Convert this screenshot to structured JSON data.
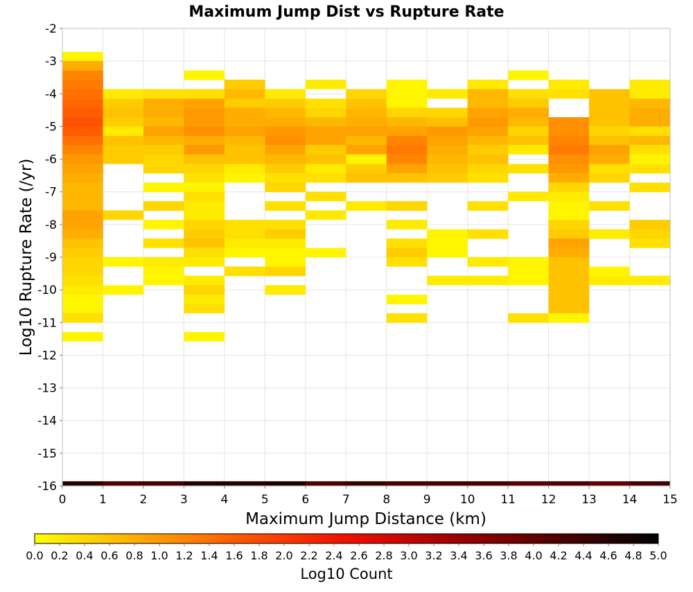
{
  "chart_data": {
    "type": "heatmap",
    "title": "Maximum Jump Dist vs Rupture Rate",
    "xlabel": "Maximum Jump Distance (km)",
    "ylabel": "Log10 Rupture Rate (/yr)",
    "xlim": [
      0,
      15
    ],
    "ylim": [
      -16,
      -2
    ],
    "x_ticks": [
      "0",
      "1",
      "2",
      "3",
      "4",
      "5",
      "6",
      "7",
      "8",
      "9",
      "10",
      "11",
      "12",
      "13",
      "14",
      "15"
    ],
    "y_ticks": [
      "-2",
      "-3",
      "-4",
      "-5",
      "-6",
      "-7",
      "-8",
      "-9",
      "-10",
      "-11",
      "-12",
      "-13",
      "-14",
      "-15",
      "-16"
    ],
    "x_bin_width": 1,
    "y_bin_height": 0.286,
    "grid": true,
    "colorbar": {
      "label": "Log10 Count",
      "range": [
        0.0,
        5.0
      ],
      "ticks": [
        "0.0",
        "0.2",
        "0.4",
        "0.6",
        "0.8",
        "1.0",
        "1.2",
        "1.4",
        "1.6",
        "1.8",
        "2.0",
        "2.2",
        "2.4",
        "2.6",
        "2.8",
        "3.0",
        "3.2",
        "3.4",
        "3.6",
        "3.8",
        "4.0",
        "4.2",
        "4.4",
        "4.6",
        "4.8",
        "5.0"
      ],
      "colormap": [
        "#ffff00",
        "#ffaa00",
        "#ff5500",
        "#ee1100",
        "#a00000",
        "#500000",
        "#000000"
      ]
    },
    "cells": [
      [
        0,
        -2.86,
        0.1
      ],
      [
        0,
        -3.14,
        0.8
      ],
      [
        0,
        -3.43,
        1.2
      ],
      [
        0,
        -3.71,
        1.3
      ],
      [
        0,
        -4.0,
        1.4
      ],
      [
        0,
        -4.29,
        1.5
      ],
      [
        0,
        -4.57,
        1.6
      ],
      [
        0,
        -4.86,
        1.7
      ],
      [
        0,
        -5.14,
        1.6
      ],
      [
        0,
        -5.43,
        1.4
      ],
      [
        0,
        -5.71,
        1.2
      ],
      [
        0,
        -6.0,
        1.0
      ],
      [
        0,
        -6.29,
        0.9
      ],
      [
        0,
        -6.57,
        0.8
      ],
      [
        0,
        -6.86,
        0.7
      ],
      [
        0,
        -7.14,
        0.7
      ],
      [
        0,
        -7.43,
        0.7
      ],
      [
        0,
        -7.71,
        0.9
      ],
      [
        0,
        -8.0,
        0.9
      ],
      [
        0,
        -8.29,
        0.8
      ],
      [
        0,
        -8.57,
        0.6
      ],
      [
        0,
        -8.86,
        0.5
      ],
      [
        0,
        -9.14,
        0.4
      ],
      [
        0,
        -9.43,
        0.4
      ],
      [
        0,
        -9.71,
        0.3
      ],
      [
        0,
        -10.0,
        0.2
      ],
      [
        0,
        -10.29,
        0.1
      ],
      [
        0,
        -10.57,
        0.1
      ],
      [
        0,
        -10.86,
        0.3
      ],
      [
        0,
        -11.43,
        0.1
      ],
      [
        1,
        -4.0,
        0.2
      ],
      [
        1,
        -4.29,
        0.5
      ],
      [
        1,
        -4.57,
        0.6
      ],
      [
        1,
        -4.86,
        0.5
      ],
      [
        1,
        -5.14,
        0.2
      ],
      [
        1,
        -5.43,
        0.6
      ],
      [
        1,
        -5.71,
        0.5
      ],
      [
        1,
        -6.0,
        0.5
      ],
      [
        1,
        -7.71,
        0.4
      ],
      [
        1,
        -9.14,
        0.1
      ],
      [
        1,
        -10.0,
        0.1
      ],
      [
        2,
        -4.0,
        0.3
      ],
      [
        2,
        -4.29,
        0.8
      ],
      [
        2,
        -4.57,
        0.8
      ],
      [
        2,
        -4.86,
        0.7
      ],
      [
        2,
        -5.14,
        0.9
      ],
      [
        2,
        -5.43,
        0.7
      ],
      [
        2,
        -5.71,
        0.5
      ],
      [
        2,
        -6.0,
        0.4
      ],
      [
        2,
        -6.29,
        0.4
      ],
      [
        2,
        -6.86,
        0.1
      ],
      [
        2,
        -7.43,
        0.4
      ],
      [
        2,
        -8.0,
        0.1
      ],
      [
        2,
        -8.57,
        0.3
      ],
      [
        2,
        -9.14,
        0.2
      ],
      [
        2,
        -9.43,
        0.1
      ],
      [
        2,
        -9.71,
        0.1
      ],
      [
        3,
        -3.43,
        0.1
      ],
      [
        3,
        -4.0,
        0.3
      ],
      [
        3,
        -4.29,
        0.9
      ],
      [
        3,
        -4.57,
        1.0
      ],
      [
        3,
        -4.86,
        1.0
      ],
      [
        3,
        -5.14,
        1.1
      ],
      [
        3,
        -5.43,
        0.8
      ],
      [
        3,
        -5.71,
        1.0
      ],
      [
        3,
        -6.0,
        0.6
      ],
      [
        3,
        -6.29,
        0.4
      ],
      [
        3,
        -6.57,
        0.3
      ],
      [
        3,
        -6.86,
        0.1
      ],
      [
        3,
        -7.14,
        0.3
      ],
      [
        3,
        -7.43,
        0.2
      ],
      [
        3,
        -7.71,
        0.2
      ],
      [
        3,
        -8.0,
        0.4
      ],
      [
        3,
        -8.29,
        0.5
      ],
      [
        3,
        -8.57,
        0.6
      ],
      [
        3,
        -8.86,
        0.3
      ],
      [
        3,
        -9.14,
        0.2
      ],
      [
        3,
        -9.71,
        0.2
      ],
      [
        3,
        -10.0,
        0.4
      ],
      [
        3,
        -10.29,
        0.2
      ],
      [
        3,
        -10.57,
        0.3
      ],
      [
        3,
        -11.43,
        0.1
      ],
      [
        4,
        -3.71,
        0.5
      ],
      [
        4,
        -4.0,
        0.7
      ],
      [
        4,
        -4.29,
        0.5
      ],
      [
        4,
        -4.57,
        0.8
      ],
      [
        4,
        -4.86,
        0.8
      ],
      [
        4,
        -5.14,
        0.9
      ],
      [
        4,
        -5.43,
        0.7
      ],
      [
        4,
        -5.71,
        0.6
      ],
      [
        4,
        -6.0,
        0.6
      ],
      [
        4,
        -6.29,
        0.2
      ],
      [
        4,
        -6.57,
        0.1
      ],
      [
        4,
        -8.0,
        0.3
      ],
      [
        4,
        -8.29,
        0.3
      ],
      [
        4,
        -8.57,
        0.2
      ],
      [
        4,
        -8.86,
        0.1
      ],
      [
        4,
        -9.43,
        0.3
      ],
      [
        5,
        -4.0,
        0.2
      ],
      [
        5,
        -4.29,
        0.5
      ],
      [
        5,
        -4.57,
        0.7
      ],
      [
        5,
        -4.86,
        0.8
      ],
      [
        5,
        -5.14,
        1.0
      ],
      [
        5,
        -5.43,
        1.1
      ],
      [
        5,
        -5.71,
        0.9
      ],
      [
        5,
        -6.0,
        0.7
      ],
      [
        5,
        -6.29,
        0.5
      ],
      [
        5,
        -6.57,
        0.3
      ],
      [
        5,
        -6.86,
        0.4
      ],
      [
        5,
        -7.43,
        0.3
      ],
      [
        5,
        -8.0,
        0.3
      ],
      [
        5,
        -8.29,
        0.5
      ],
      [
        5,
        -8.57,
        0.2
      ],
      [
        5,
        -8.86,
        0.1
      ],
      [
        5,
        -9.14,
        0.1
      ],
      [
        5,
        -9.43,
        0.4
      ],
      [
        5,
        -10.0,
        0.2
      ],
      [
        6,
        -3.71,
        0.2
      ],
      [
        6,
        -4.29,
        0.3
      ],
      [
        6,
        -4.57,
        0.4
      ],
      [
        6,
        -4.86,
        0.7
      ],
      [
        6,
        -5.14,
        0.9
      ],
      [
        6,
        -5.43,
        0.9
      ],
      [
        6,
        -5.71,
        0.5
      ],
      [
        6,
        -6.0,
        0.6
      ],
      [
        6,
        -6.29,
        0.2
      ],
      [
        6,
        -6.57,
        0.3
      ],
      [
        6,
        -7.14,
        0.3
      ],
      [
        6,
        -7.71,
        0.2
      ],
      [
        6,
        -8.86,
        0.1
      ],
      [
        7,
        -4.0,
        0.4
      ],
      [
        7,
        -4.29,
        0.6
      ],
      [
        7,
        -4.57,
        0.7
      ],
      [
        7,
        -4.86,
        0.8
      ],
      [
        7,
        -5.14,
        0.9
      ],
      [
        7,
        -5.43,
        0.7
      ],
      [
        7,
        -5.71,
        0.9
      ],
      [
        7,
        -6.0,
        0.1
      ],
      [
        7,
        -6.29,
        0.5
      ],
      [
        7,
        -6.57,
        0.6
      ],
      [
        7,
        -7.43,
        0.2
      ],
      [
        8,
        -3.71,
        0.1
      ],
      [
        8,
        -4.0,
        0.1
      ],
      [
        8,
        -4.29,
        0.1
      ],
      [
        8,
        -4.57,
        0.4
      ],
      [
        8,
        -4.86,
        0.7
      ],
      [
        8,
        -5.14,
        0.9
      ],
      [
        8,
        -5.43,
        1.2
      ],
      [
        8,
        -5.71,
        1.3
      ],
      [
        8,
        -6.0,
        1.2
      ],
      [
        8,
        -6.29,
        0.9
      ],
      [
        8,
        -6.57,
        0.6
      ],
      [
        8,
        -7.43,
        0.4
      ],
      [
        8,
        -8.0,
        0.2
      ],
      [
        8,
        -8.57,
        0.3
      ],
      [
        8,
        -8.86,
        0.5
      ],
      [
        8,
        -9.14,
        0.3
      ],
      [
        8,
        -10.29,
        0.1
      ],
      [
        8,
        -10.86,
        0.3
      ],
      [
        9,
        -4.0,
        0.2
      ],
      [
        9,
        -4.57,
        0.4
      ],
      [
        9,
        -4.86,
        0.6
      ],
      [
        9,
        -5.14,
        1.0
      ],
      [
        9,
        -5.43,
        0.9
      ],
      [
        9,
        -5.71,
        0.8
      ],
      [
        9,
        -6.0,
        0.7
      ],
      [
        9,
        -6.29,
        0.6
      ],
      [
        9,
        -6.57,
        0.5
      ],
      [
        9,
        -8.29,
        0.1
      ],
      [
        9,
        -8.57,
        0.1
      ],
      [
        9,
        -8.86,
        0.1
      ],
      [
        9,
        -9.71,
        0.2
      ],
      [
        10,
        -3.71,
        0.2
      ],
      [
        10,
        -4.0,
        0.7
      ],
      [
        10,
        -4.29,
        0.7
      ],
      [
        10,
        -4.57,
        0.9
      ],
      [
        10,
        -4.86,
        1.0
      ],
      [
        10,
        -5.14,
        0.9
      ],
      [
        10,
        -5.43,
        0.7
      ],
      [
        10,
        -5.71,
        0.5
      ],
      [
        10,
        -6.0,
        0.6
      ],
      [
        10,
        -6.29,
        0.4
      ],
      [
        10,
        -6.57,
        0.3
      ],
      [
        10,
        -7.43,
        0.3
      ],
      [
        10,
        -8.29,
        0.3
      ],
      [
        10,
        -9.14,
        0.2
      ],
      [
        10,
        -9.71,
        0.2
      ],
      [
        11,
        -3.43,
        0.1
      ],
      [
        11,
        -4.0,
        0.3
      ],
      [
        11,
        -4.29,
        0.5
      ],
      [
        11,
        -4.57,
        0.8
      ],
      [
        11,
        -4.86,
        0.7
      ],
      [
        11,
        -5.14,
        0.4
      ],
      [
        11,
        -5.43,
        0.6
      ],
      [
        11,
        -5.71,
        0.2
      ],
      [
        11,
        -6.29,
        0.3
      ],
      [
        11,
        -7.14,
        0.2
      ],
      [
        11,
        -9.14,
        0.1
      ],
      [
        11,
        -9.43,
        0.1
      ],
      [
        11,
        -9.71,
        0.1
      ],
      [
        11,
        -10.86,
        0.3
      ],
      [
        12,
        -3.71,
        0.2
      ],
      [
        12,
        -4.0,
        0.3
      ],
      [
        12,
        -4.86,
        1.1
      ],
      [
        12,
        -5.14,
        1.1
      ],
      [
        12,
        -5.43,
        1.2
      ],
      [
        12,
        -5.71,
        1.3
      ],
      [
        12,
        -6.0,
        1.1
      ],
      [
        12,
        -6.29,
        1.0
      ],
      [
        12,
        -6.57,
        0.8
      ],
      [
        12,
        -6.86,
        0.4
      ],
      [
        12,
        -7.14,
        0.2
      ],
      [
        12,
        -7.43,
        0.1
      ],
      [
        12,
        -7.71,
        0.1
      ],
      [
        12,
        -8.0,
        0.4
      ],
      [
        12,
        -8.29,
        0.5
      ],
      [
        12,
        -8.57,
        0.9
      ],
      [
        12,
        -8.86,
        0.8
      ],
      [
        12,
        -9.14,
        0.6
      ],
      [
        12,
        -9.43,
        0.6
      ],
      [
        12,
        -9.71,
        0.6
      ],
      [
        12,
        -10.0,
        0.6
      ],
      [
        12,
        -10.29,
        0.6
      ],
      [
        12,
        -10.57,
        0.6
      ],
      [
        12,
        -10.86,
        0.1
      ],
      [
        13,
        -4.0,
        0.6
      ],
      [
        13,
        -4.29,
        0.6
      ],
      [
        13,
        -4.57,
        0.6
      ],
      [
        13,
        -4.86,
        0.6
      ],
      [
        13,
        -5.14,
        0.4
      ],
      [
        13,
        -5.43,
        0.6
      ],
      [
        13,
        -5.71,
        0.9
      ],
      [
        13,
        -6.0,
        0.8
      ],
      [
        13,
        -6.29,
        0.3
      ],
      [
        13,
        -6.57,
        0.4
      ],
      [
        13,
        -7.43,
        0.3
      ],
      [
        13,
        -8.29,
        0.2
      ],
      [
        13,
        -9.43,
        0.1
      ],
      [
        13,
        -9.71,
        0.2
      ],
      [
        14,
        -3.71,
        0.2
      ],
      [
        14,
        -4.0,
        0.2
      ],
      [
        14,
        -4.29,
        0.7
      ],
      [
        14,
        -4.57,
        0.8
      ],
      [
        14,
        -4.86,
        0.8
      ],
      [
        14,
        -5.14,
        0.3
      ],
      [
        14,
        -5.43,
        0.7
      ],
      [
        14,
        -5.71,
        0.3
      ],
      [
        14,
        -6.0,
        0.1
      ],
      [
        14,
        -6.29,
        0.3
      ],
      [
        14,
        -6.86,
        0.3
      ],
      [
        14,
        -8.0,
        0.5
      ],
      [
        14,
        -8.29,
        0.4
      ],
      [
        14,
        -8.57,
        0.3
      ],
      [
        14,
        -9.71,
        0.2
      ]
    ],
    "bottom_row": {
      "y": -16.0,
      "values": [
        4.6,
        4.2,
        4.3,
        4.6,
        4.6,
        4.7,
        4.2,
        4.4,
        4.3,
        4.3,
        4.3,
        4.1,
        4.2,
        4.0,
        4.3
      ]
    }
  }
}
